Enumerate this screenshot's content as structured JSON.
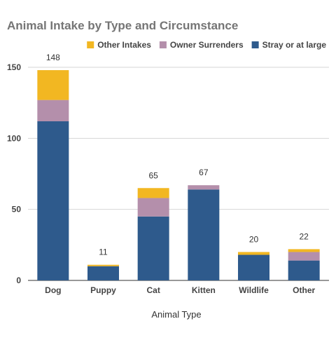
{
  "chart_data": {
    "type": "bar",
    "stacked": true,
    "title": "Animal Intake by Type and Circumstance",
    "xlabel": "Animal Type",
    "ylabel": "",
    "categories": [
      "Dog",
      "Puppy",
      "Cat",
      "Kitten",
      "Wildlife",
      "Other"
    ],
    "series": [
      {
        "name": "Stray or at large",
        "color": "#2e5a8c",
        "values": [
          112,
          10,
          45,
          64,
          18,
          14
        ]
      },
      {
        "name": "Owner Surrenders",
        "color": "#b48fab",
        "values": [
          15,
          0,
          13,
          3,
          0,
          6
        ]
      },
      {
        "name": "Other Intakes",
        "color": "#f2b722",
        "values": [
          21,
          1,
          7,
          0,
          2,
          2
        ]
      }
    ],
    "totals": [
      "148",
      "11",
      "65",
      "67",
      "20",
      "22"
    ],
    "legend": {
      "position": "top-right",
      "order": [
        "Other Intakes",
        "Owner Surrenders",
        "Stray or at large"
      ]
    },
    "ylim": [
      0,
      150
    ],
    "yticks": [
      "0",
      "50",
      "100",
      "150"
    ],
    "grid": true
  }
}
